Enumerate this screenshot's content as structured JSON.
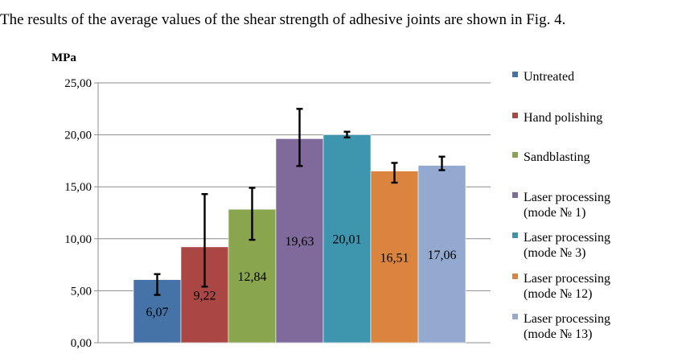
{
  "caption": "The results of the average values of the shear strength of adhesive joints are shown in Fig. 4.",
  "chart_data": {
    "type": "bar",
    "title": "",
    "ylabel": "MPa",
    "xlabel": "",
    "ylim": [
      0,
      25
    ],
    "yticks": [
      0,
      5,
      10,
      15,
      20,
      25
    ],
    "ytick_labels": [
      "0,00",
      "5,00",
      "10,00",
      "15,00",
      "20,00",
      "25,00"
    ],
    "grid": true,
    "legend_position": "right",
    "series": [
      {
        "name": "Untreated",
        "name_lines": [
          "Untreated"
        ],
        "value": 6.07,
        "label": "6,07",
        "error_low": 4.6,
        "error_high": 6.6,
        "color": "#4572A7"
      },
      {
        "name": "Hand polishing",
        "name_lines": [
          "Hand polishing"
        ],
        "value": 9.22,
        "label": "9,22",
        "error_low": 5.4,
        "error_high": 14.3,
        "color": "#AA4643"
      },
      {
        "name": "Sandblasting",
        "name_lines": [
          "Sandblasting"
        ],
        "value": 12.84,
        "label": "12,84",
        "error_low": 9.9,
        "error_high": 14.9,
        "color": "#89A54E"
      },
      {
        "name": "Laser processing (mode № 1)",
        "name_lines": [
          "Laser processing",
          "(mode № 1)"
        ],
        "value": 19.63,
        "label": "19,63",
        "error_low": 17.0,
        "error_high": 22.5,
        "color": "#80699B"
      },
      {
        "name": "Laser processing (mode № 3)",
        "name_lines": [
          "Laser processing",
          "(mode № 3)"
        ],
        "value": 20.01,
        "label": "20,01",
        "error_low": 19.75,
        "error_high": 20.3,
        "color": "#3D96AE"
      },
      {
        "name": "Laser processing (mode № 12)",
        "name_lines": [
          "Laser processing",
          "(mode № 12)"
        ],
        "value": 16.51,
        "label": "16,51",
        "error_low": 15.4,
        "error_high": 17.3,
        "color": "#DB843D"
      },
      {
        "name": "Laser processing (mode № 13)",
        "name_lines": [
          "Laser processing",
          "(mode № 13)"
        ],
        "value": 17.06,
        "label": "17,06",
        "error_low": 16.6,
        "error_high": 17.9,
        "color": "#93A9CF"
      }
    ]
  }
}
